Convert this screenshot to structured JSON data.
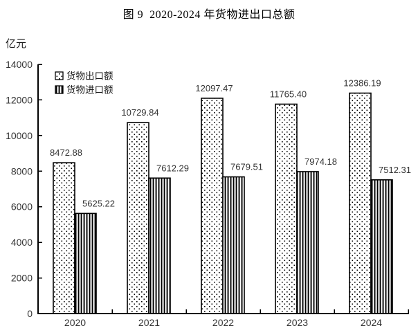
{
  "page": {
    "background": "#ffffff"
  },
  "chart_data": {
    "type": "bar",
    "title": "图 9  2020-2024 年货物进出口总额",
    "unit_label": "亿元",
    "categories": [
      "2020",
      "2021",
      "2022",
      "2023",
      "2024"
    ],
    "series": [
      {
        "key": "export",
        "name": "货物出口额",
        "pattern": "dots",
        "values": [
          8472.88,
          10729.84,
          12097.47,
          11765.4,
          12386.19
        ],
        "labels": [
          "8472.88",
          "10729.84",
          "12097.47",
          "11765.40",
          "12386.19"
        ]
      },
      {
        "key": "import",
        "name": "货物进口额",
        "pattern": "vlines",
        "values": [
          5625.22,
          7612.29,
          7679.51,
          7974.18,
          7512.31
        ],
        "labels": [
          "5625.22",
          "7612.29",
          "7679.51",
          "7974.18",
          "7512.31"
        ]
      }
    ],
    "ylim": [
      0,
      14000
    ],
    "yticks": [
      0,
      2000,
      4000,
      6000,
      8000,
      10000,
      12000,
      14000
    ],
    "grid": false,
    "legend_position": "upper-left-inside",
    "colors": {
      "background": "#ffffff",
      "line": "#000000",
      "bar_fill": "#ffffff",
      "cjk_text": "#1a1a1a",
      "number_text": "#333333"
    }
  }
}
